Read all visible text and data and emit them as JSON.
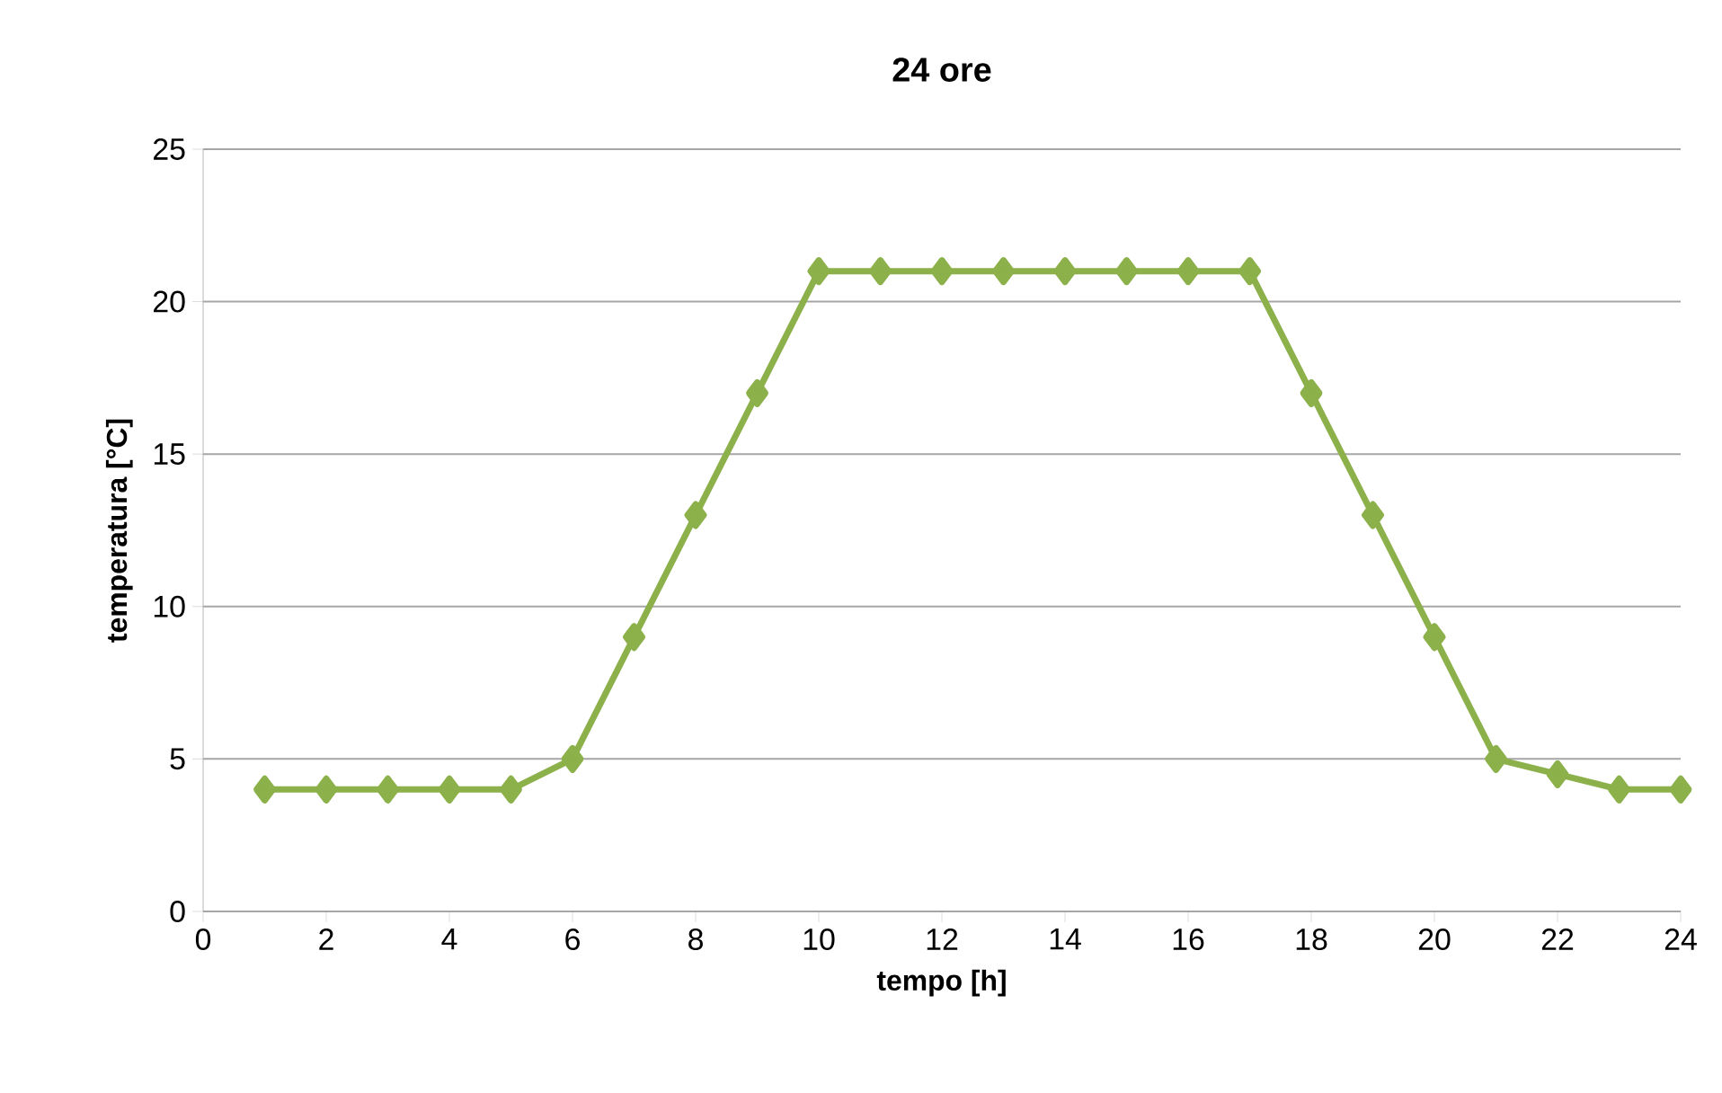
{
  "chart_data": {
    "type": "line",
    "title": "24 ore",
    "xlabel": "tempo [h]",
    "ylabel": "temperatura [°C]",
    "x": [
      1,
      2,
      3,
      4,
      5,
      6,
      7,
      8,
      9,
      10,
      11,
      12,
      13,
      14,
      15,
      16,
      17,
      18,
      19,
      20,
      21,
      22,
      23,
      24
    ],
    "series": [
      {
        "color": "#8cb04a",
        "values": [
          4,
          4,
          4,
          4,
          4,
          5,
          9,
          13,
          17,
          21,
          21,
          21,
          21,
          21,
          21,
          21,
          21,
          17,
          13,
          9,
          5,
          4.5,
          4,
          4
        ]
      }
    ],
    "xlim": [
      0,
      24
    ],
    "ylim": [
      0,
      25
    ],
    "xticks": [
      0,
      2,
      4,
      6,
      8,
      10,
      12,
      14,
      16,
      18,
      20,
      22,
      24
    ],
    "yticks": [
      0,
      5,
      10,
      15,
      20,
      25
    ],
    "grid": "y",
    "marker": "diamond",
    "line_style": "solid"
  }
}
